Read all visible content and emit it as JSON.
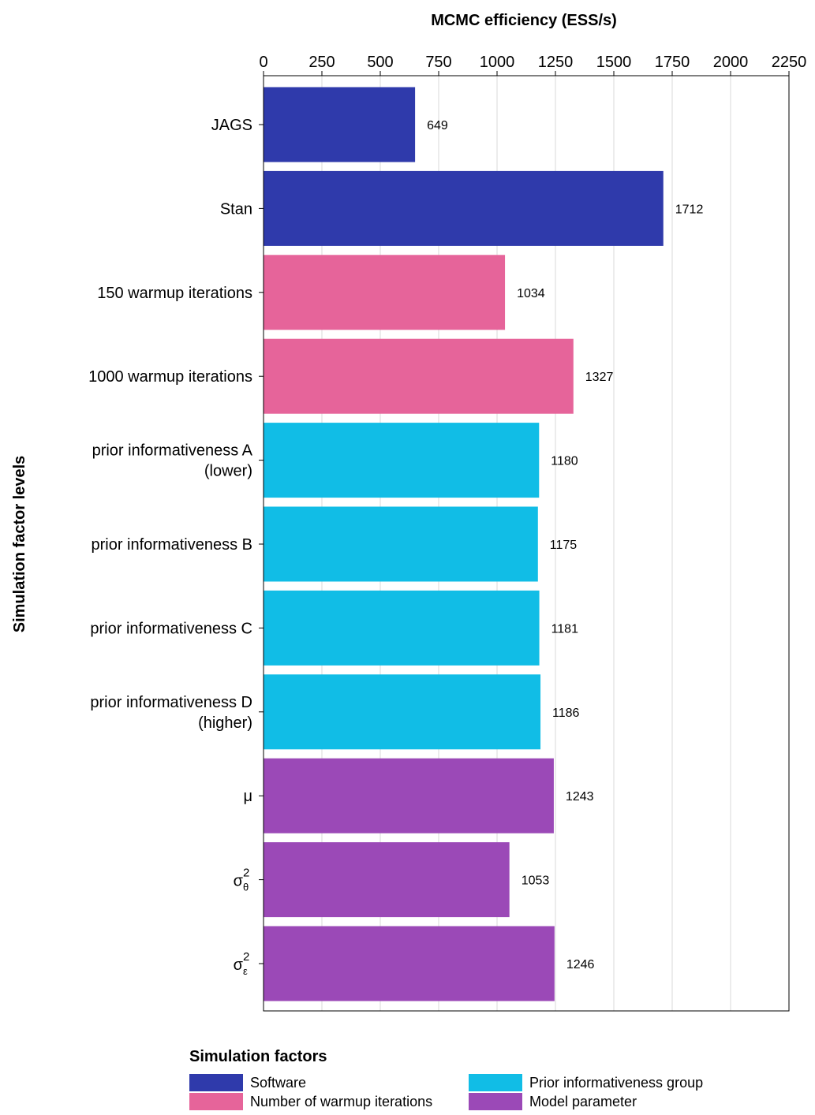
{
  "chart_data": {
    "type": "bar",
    "orientation": "horizontal",
    "title": "",
    "xlabel": "MCMC efficiency (ESS/s)",
    "ylabel": "Simulation factor levels",
    "xlim": [
      0,
      2250
    ],
    "x_ticks": [
      0,
      250,
      500,
      750,
      1000,
      1250,
      1500,
      1750,
      2000,
      2250
    ],
    "grid": "vertical",
    "categories": [
      {
        "label": "JAGS",
        "group": "Software",
        "value": 649
      },
      {
        "label": "Stan",
        "group": "Software",
        "value": 1712
      },
      {
        "label": "150 warmup iterations",
        "group": "Number of warmup iterations",
        "value": 1034
      },
      {
        "label": "1000 warmup iterations",
        "group": "Number of warmup iterations",
        "value": 1327
      },
      {
        "label": "prior informativeness A\n(lower)",
        "group": "Prior informativeness group",
        "value": 1180
      },
      {
        "label": "prior informativeness B",
        "group": "Prior informativeness group",
        "value": 1175
      },
      {
        "label": "prior informativeness C",
        "group": "Prior informativeness group",
        "value": 1181
      },
      {
        "label": "prior informativeness D\n(higher)",
        "group": "Prior informativeness group",
        "value": 1186
      },
      {
        "label": "μ",
        "group": "Model parameter",
        "value": 1243
      },
      {
        "label": "σ",
        "sup": "2",
        "sub": "θ",
        "group": "Model parameter",
        "value": 1053
      },
      {
        "label": "σ",
        "sup": "2",
        "sub": "ε",
        "group": "Model parameter",
        "value": 1246
      }
    ],
    "legend": {
      "title": "Simulation factors",
      "placement": "bottom",
      "entries": [
        {
          "name": "Software",
          "color": "#2f3aab"
        },
        {
          "name": "Prior informativeness group",
          "color": "#11bde6"
        },
        {
          "name": "Number of warmup iterations",
          "color": "#e6649a"
        },
        {
          "name": "Model parameter",
          "color": "#9b49b7"
        }
      ]
    }
  }
}
